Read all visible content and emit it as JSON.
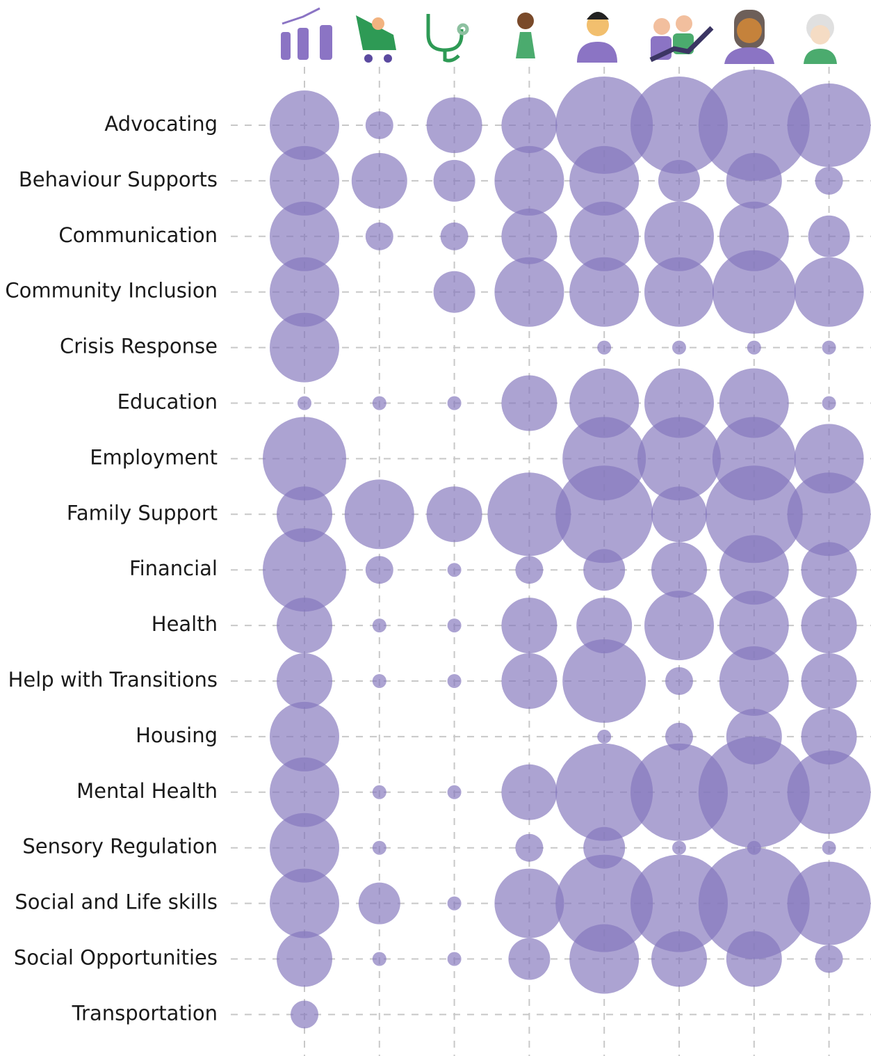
{
  "chart_data": {
    "type": "bubble-matrix",
    "categories": [
      "Advocating",
      "Behaviour Supports",
      "Communication",
      "Community Inclusion",
      "Crisis Response",
      "Education",
      "Employment",
      "Family Support",
      "Financial",
      "Health",
      "Help with Transitions",
      "Housing",
      "Mental Health",
      "Sensory Regulation",
      "Social and Life skills",
      "Social Opportunities",
      "Transportation"
    ],
    "columns": [
      null,
      null,
      null,
      null,
      null,
      null,
      null,
      null
    ],
    "values": [
      [
        100,
        40,
        80,
        80,
        140,
        140,
        160,
        120
      ],
      [
        100,
        80,
        60,
        100,
        100,
        60,
        80,
        40
      ],
      [
        100,
        40,
        40,
        80,
        100,
        100,
        100,
        60
      ],
      [
        100,
        null,
        60,
        100,
        100,
        100,
        120,
        100
      ],
      [
        100,
        null,
        null,
        null,
        20,
        20,
        20,
        20
      ],
      [
        20,
        20,
        20,
        80,
        100,
        100,
        100,
        20
      ],
      [
        120,
        null,
        null,
        null,
        120,
        120,
        120,
        100
      ],
      [
        80,
        100,
        80,
        120,
        140,
        80,
        140,
        120
      ],
      [
        120,
        40,
        20,
        40,
        60,
        80,
        100,
        80
      ],
      [
        80,
        20,
        20,
        80,
        80,
        100,
        100,
        80
      ],
      [
        80,
        20,
        20,
        80,
        120,
        40,
        100,
        80
      ],
      [
        100,
        null,
        null,
        null,
        20,
        40,
        80,
        80
      ],
      [
        100,
        20,
        20,
        80,
        140,
        140,
        160,
        120
      ],
      [
        100,
        20,
        null,
        40,
        60,
        20,
        20,
        20
      ],
      [
        100,
        60,
        20,
        100,
        140,
        140,
        160,
        120
      ],
      [
        80,
        20,
        20,
        60,
        100,
        80,
        80,
        40
      ],
      [
        40,
        null,
        null,
        null,
        null,
        null,
        null,
        null
      ]
    ],
    "color": "#8478bd"
  }
}
